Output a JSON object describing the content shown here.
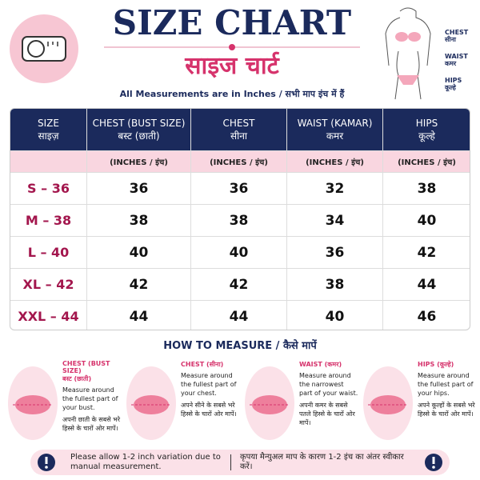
{
  "header": {
    "title": "SIZE CHART",
    "subtitle": "साइज चार्ट",
    "note": "All Measurements are in Inches / सभी माप इंच में हैं"
  },
  "figure_labels": [
    {
      "en": "CHEST",
      "hi": "सीना"
    },
    {
      "en": "WAIST",
      "hi": "कमर"
    },
    {
      "en": "HIPS",
      "hi": "कूल्हे"
    }
  ],
  "table": {
    "columns": [
      {
        "en": "SIZE",
        "hi": "साइज़"
      },
      {
        "en": "CHEST (BUST SIZE)",
        "hi": "बस्ट (छाती)"
      },
      {
        "en": "CHEST",
        "hi": "सीना"
      },
      {
        "en": "WAIST (KAMAR)",
        "hi": "कमर"
      },
      {
        "en": "HIPS",
        "hi": "कूल्हे"
      }
    ],
    "units": [
      "(INCHES / इंच)",
      "(INCHES / इंच)",
      "(INCHES / इंच)",
      "(INCHES / इंच)"
    ],
    "rows": [
      [
        "S – 36",
        36,
        36,
        32,
        38
      ],
      [
        "M – 38",
        38,
        38,
        34,
        40
      ],
      [
        "L – 40",
        40,
        40,
        36,
        42
      ],
      [
        "XL – 42",
        42,
        42,
        38,
        44
      ],
      [
        "XXL – 44",
        44,
        44,
        40,
        46
      ]
    ]
  },
  "how_to": {
    "title": "HOW TO MEASURE / कैसे मापें",
    "items": [
      {
        "label": "CHEST (BUST SIZE)",
        "label_hi": "बस्ट (छाती)",
        "text": "Measure around the fullest part of your bust.",
        "text_hi": "अपनी छाती के सबसे भरे हिस्से के चारों ओर मापें।"
      },
      {
        "label": "CHEST (सीना)",
        "text": "Measure around the fullest part of your chest.",
        "text_hi": "अपने सीने के सबसे भरे हिस्से के चारों ओर मापें।"
      },
      {
        "label": "WAIST (कमर)",
        "text": "Measure around the narrowest part of your waist.",
        "text_hi": "अपनी कमर के सबसे पतले हिस्से के चारों ओर मापें।"
      },
      {
        "label": "HIPS (कूल्हे)",
        "text": "Measure around the fullest part of your hips.",
        "text_hi": "अपने कूल्हों के सबसे भरे हिस्से के चारों ओर मापें।"
      }
    ]
  },
  "footer": {
    "en": "Please allow 1-2 inch variation due to manual measurement.",
    "hi": "कृपया मैन्युअल माप के कारण 1-2 इंच का अंतर स्वीकार करें।"
  }
}
